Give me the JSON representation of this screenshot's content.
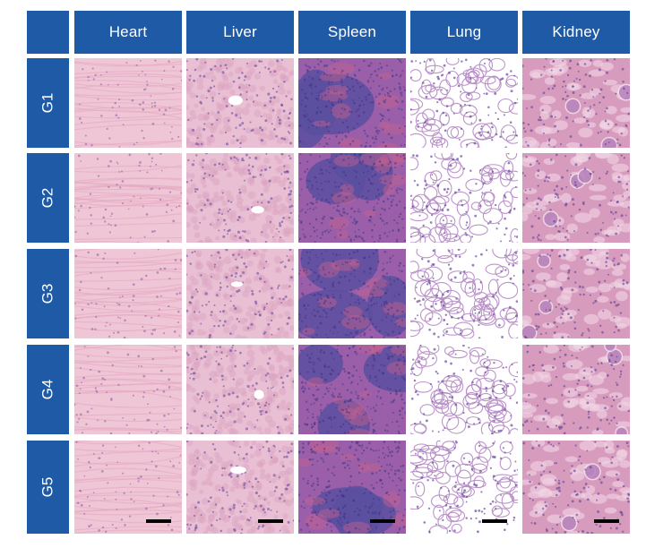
{
  "figure": {
    "columns": [
      {
        "label": "Heart",
        "tissue": "heart"
      },
      {
        "label": "Liver",
        "tissue": "liver"
      },
      {
        "label": "Spleen",
        "tissue": "spleen"
      },
      {
        "label": "Lung",
        "tissue": "lung"
      },
      {
        "label": "Kidney",
        "tissue": "kidney"
      }
    ],
    "rows": [
      {
        "label": "G1"
      },
      {
        "label": "G2"
      },
      {
        "label": "G3"
      },
      {
        "label": "G4"
      },
      {
        "label": "G5"
      }
    ],
    "scale_bar_row": 4,
    "colors": {
      "header_blue": "#1f5aa6",
      "header_text": "#ffffff",
      "heart_base": "#efc6d5",
      "liver_base": "#e9c0d3",
      "spleen_base": "#9a5fa8",
      "spleen_dark": "#5a4fa0",
      "lung_base": "#ffffff",
      "lung_tissue": "#b58ac4",
      "kidney_base": "#d79bbd",
      "scale_bar": "#000000"
    }
  }
}
